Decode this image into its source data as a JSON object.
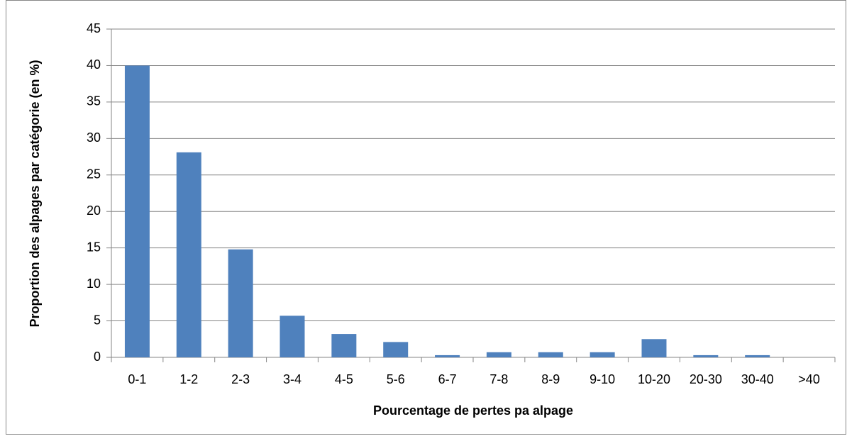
{
  "chart_data": {
    "type": "bar",
    "x_label": "Pourcentage de pertes pa alpage",
    "y_label": "Proportion des alpages par catégorie  (en %)",
    "categories": [
      "0-1",
      "1-2",
      "2-3",
      "3-4",
      "4-5",
      "5-6",
      "6-7",
      "7-8",
      "8-9",
      "9-10",
      "10-20",
      "20-30",
      "30-40",
      ">40"
    ],
    "values": [
      40,
      28.1,
      14.8,
      5.7,
      3.2,
      2.1,
      0.3,
      0.7,
      0.7,
      0.7,
      2.5,
      0.3,
      0.3,
      0
    ],
    "color": "#4f81bd",
    "ylim": [
      0,
      45
    ],
    "yticks": [
      0,
      5,
      10,
      15,
      20,
      25,
      30,
      35,
      40,
      45
    ],
    "grid": true
  }
}
